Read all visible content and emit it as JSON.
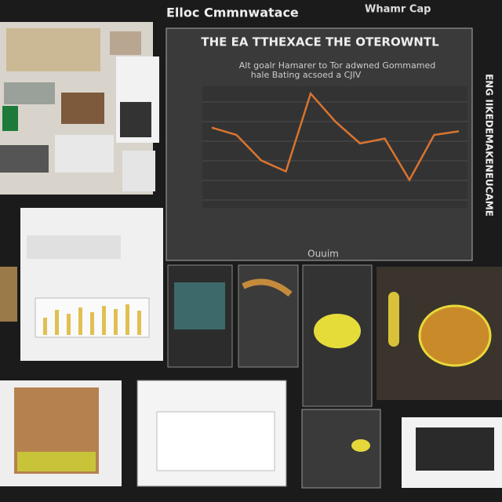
{
  "header": {
    "title": "Elloc Cmmnwatace",
    "tag": "Whamr Cap"
  },
  "main_chart": {
    "type": "line",
    "title": "THE EA TTHEXACE THE OTEROWNTL",
    "subtitle": "Alt goalr Hamarer to Tor adwned Gommamed",
    "subtitle2": "hale Bating acsoed a CJIV",
    "x_label": "Ouuim",
    "side_text": "ENG IIKEDEMAKENEUCAME",
    "color": "#d9742f",
    "values": [
      66,
      60,
      39,
      30,
      94,
      71,
      53,
      57,
      23,
      60,
      63
    ],
    "ylim": [
      0,
      100
    ]
  }
}
